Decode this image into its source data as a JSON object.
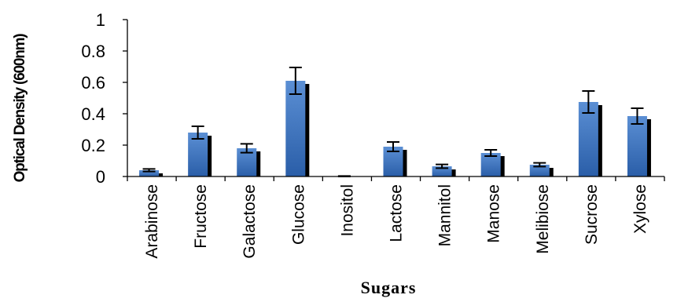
{
  "chart_data": {
    "type": "bar",
    "xlabel": "Sugars",
    "ylabel": "Optical Density (600nm)",
    "ylim": [
      0,
      1
    ],
    "yticks": [
      "0",
      "0.2",
      "0.4",
      "0.6",
      "0.8",
      "1"
    ],
    "grid": false,
    "legend": "none",
    "categories": [
      "Arabinose",
      "Fructose",
      "Galactose",
      "Glucose",
      "Inositol",
      "Lactose",
      "Mannitol",
      "Manose",
      "Melibiose",
      "Sucrose",
      "Xylose"
    ],
    "values": [
      0.04,
      0.28,
      0.18,
      0.61,
      0.0,
      0.19,
      0.065,
      0.15,
      0.075,
      0.475,
      0.385
    ],
    "error": [
      0.008,
      0.04,
      0.028,
      0.085,
      0.003,
      0.03,
      0.012,
      0.02,
      0.012,
      0.07,
      0.05
    ],
    "colors": {
      "bar_top": "#5b8fd4",
      "bar_bottom": "#2a5ea8",
      "shadow": "#000000",
      "axis": "#000000"
    }
  }
}
